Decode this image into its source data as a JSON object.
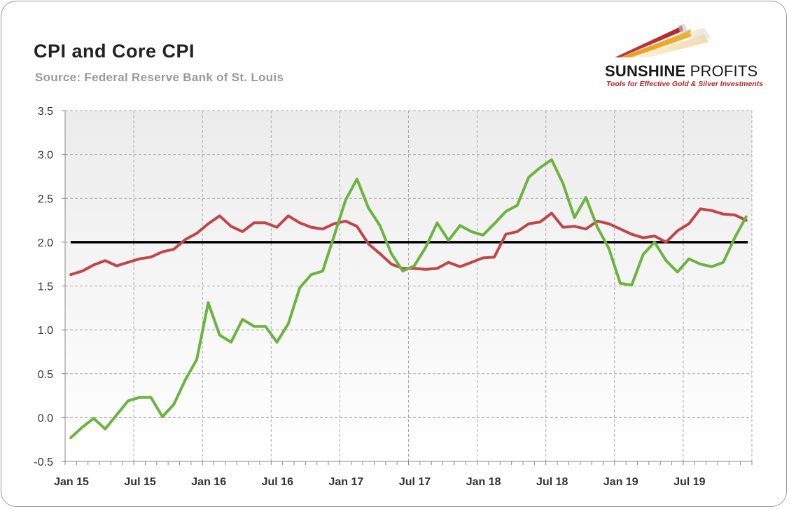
{
  "header": {
    "title": "CPI and Core CPI",
    "subtitle": "Source: Federal Reserve Bank of St. Louis"
  },
  "logo": {
    "name_bold": "SUNSHINE",
    "name_light": " PROFITS",
    "tagline": "Tools for Effective Gold & Silver Investments"
  },
  "colors": {
    "cpi": "#6db33f",
    "core_cpi": "#c0464a",
    "reference": "#000000",
    "plot_bg_top": "#ececec",
    "plot_bg_bottom": "#ffffff",
    "grid": "#a8a8a8"
  },
  "chart_data": {
    "type": "line",
    "title": "CPI and Core CPI",
    "subtitle": "Source: Federal Reserve Bank of St. Louis",
    "xlabel": "",
    "ylabel": "",
    "ylim": [
      -0.5,
      3.5
    ],
    "yticks": [
      "3.5",
      "3.0",
      "2.5",
      "2.0",
      "1.5",
      "1.0",
      "0.5",
      "0.0",
      "-0.5"
    ],
    "x_tick_labels": [
      "Jan 15",
      "Jul 15",
      "Jan 16",
      "Jul 16",
      "Jan 17",
      "Jul 17",
      "Jan 18",
      "Jul 18",
      "Jan 19",
      "Jul 19"
    ],
    "x_start": "2015-01",
    "x_end": "2019-12",
    "grid": true,
    "legend": "none",
    "reference_line": 2.0,
    "series": [
      {
        "values": [
          -0.23,
          -0.11,
          -0.01,
          -0.13,
          0.03,
          0.19,
          0.23,
          0.23,
          0.01,
          0.15,
          0.43,
          0.66,
          1.31,
          0.94,
          0.86,
          1.12,
          1.04,
          1.04,
          0.86,
          1.07,
          1.48,
          1.63,
          1.67,
          2.07,
          2.48,
          2.72,
          2.39,
          2.19,
          1.87,
          1.67,
          1.73,
          1.94,
          2.22,
          2.02,
          2.19,
          2.12,
          2.08,
          2.21,
          2.35,
          2.42,
          2.74,
          2.85,
          2.94,
          2.67,
          2.28,
          2.51,
          2.17,
          1.93,
          1.53,
          1.51,
          1.86,
          2.0,
          1.79,
          1.66,
          1.81,
          1.75,
          1.72,
          1.77,
          2.05,
          2.29
        ]
      },
      {
        "values": [
          1.63,
          1.67,
          1.74,
          1.79,
          1.73,
          1.77,
          1.81,
          1.83,
          1.89,
          1.92,
          2.03,
          2.1,
          2.21,
          2.3,
          2.18,
          2.12,
          2.22,
          2.22,
          2.17,
          2.3,
          2.22,
          2.17,
          2.15,
          2.21,
          2.24,
          2.18,
          1.98,
          1.87,
          1.75,
          1.7,
          1.7,
          1.69,
          1.7,
          1.77,
          1.72,
          1.77,
          1.82,
          1.83,
          2.09,
          2.12,
          2.21,
          2.23,
          2.33,
          2.17,
          2.18,
          2.15,
          2.24,
          2.21,
          2.15,
          2.09,
          2.05,
          2.07,
          2.0,
          2.13,
          2.21,
          2.38,
          2.36,
          2.32,
          2.31,
          2.25
        ]
      }
    ]
  }
}
